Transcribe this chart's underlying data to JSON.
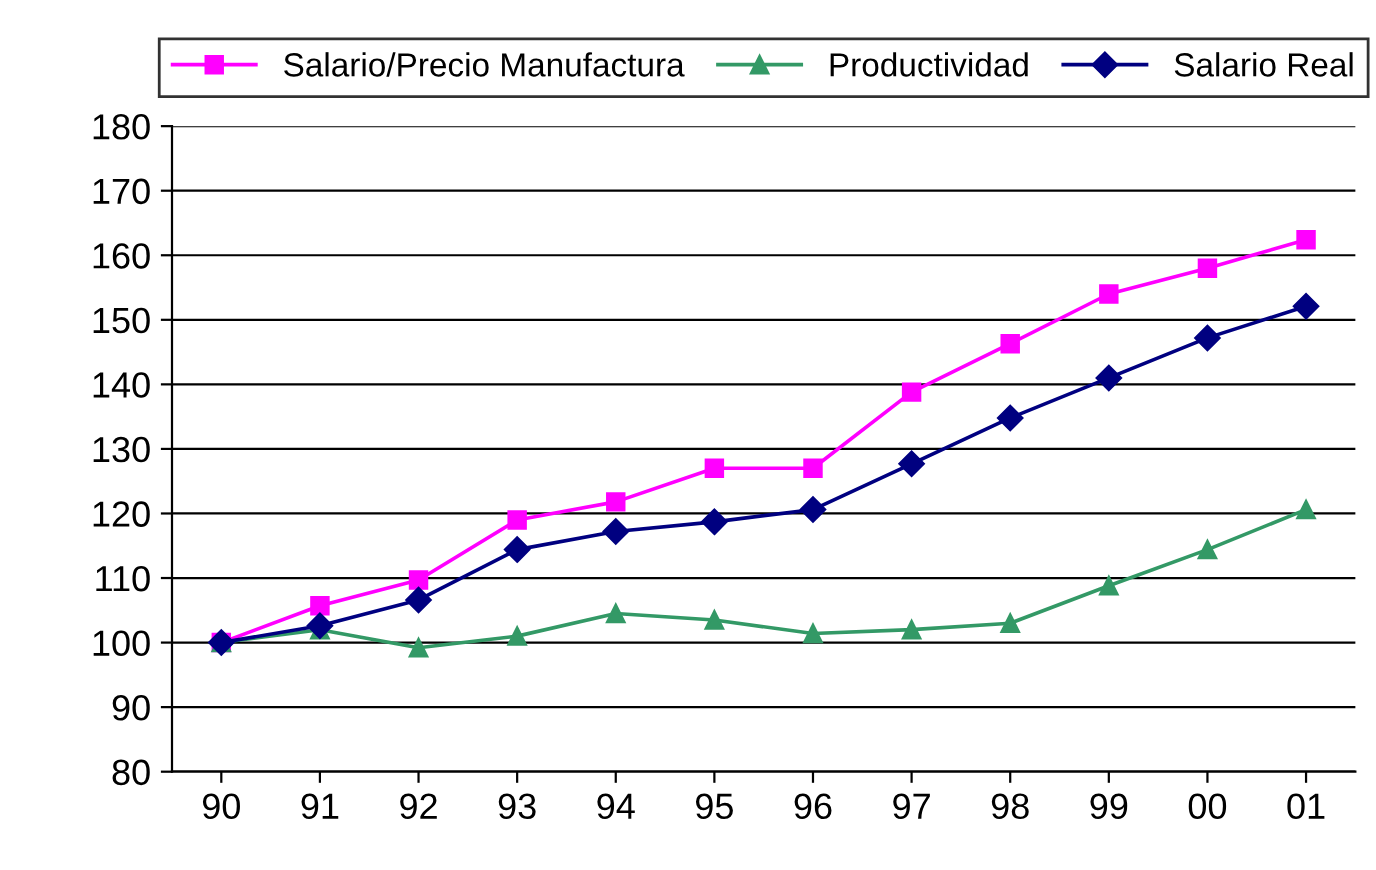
{
  "chart_data": {
    "type": "line",
    "categories": [
      "90",
      "91",
      "92",
      "93",
      "94",
      "95",
      "96",
      "97",
      "98",
      "99",
      "00",
      "01"
    ],
    "series": [
      {
        "name": "Salario/Precio Manufactura",
        "color": "#ff00ff",
        "marker": "square",
        "values": [
          100,
          105.7,
          109.7,
          119,
          121.8,
          127,
          127,
          138.8,
          146.3,
          154,
          158,
          162.4
        ]
      },
      {
        "name": "Productividad",
        "color": "#339966",
        "marker": "triangle",
        "values": [
          100,
          102,
          99.2,
          101,
          104.5,
          103.5,
          101.4,
          102,
          103,
          108.8,
          114.4,
          120.6
        ]
      },
      {
        "name": "Salario Real",
        "color": "#000080",
        "marker": "diamond",
        "values": [
          100,
          102.6,
          106.6,
          114.4,
          117.2,
          118.7,
          120.6,
          127.7,
          134.8,
          141,
          147.2,
          152.1
        ]
      }
    ],
    "ylim": [
      80,
      180
    ],
    "yticks": [
      80,
      90,
      100,
      110,
      120,
      130,
      140,
      150,
      160,
      170,
      180
    ],
    "grid": "y",
    "legend": "top"
  }
}
